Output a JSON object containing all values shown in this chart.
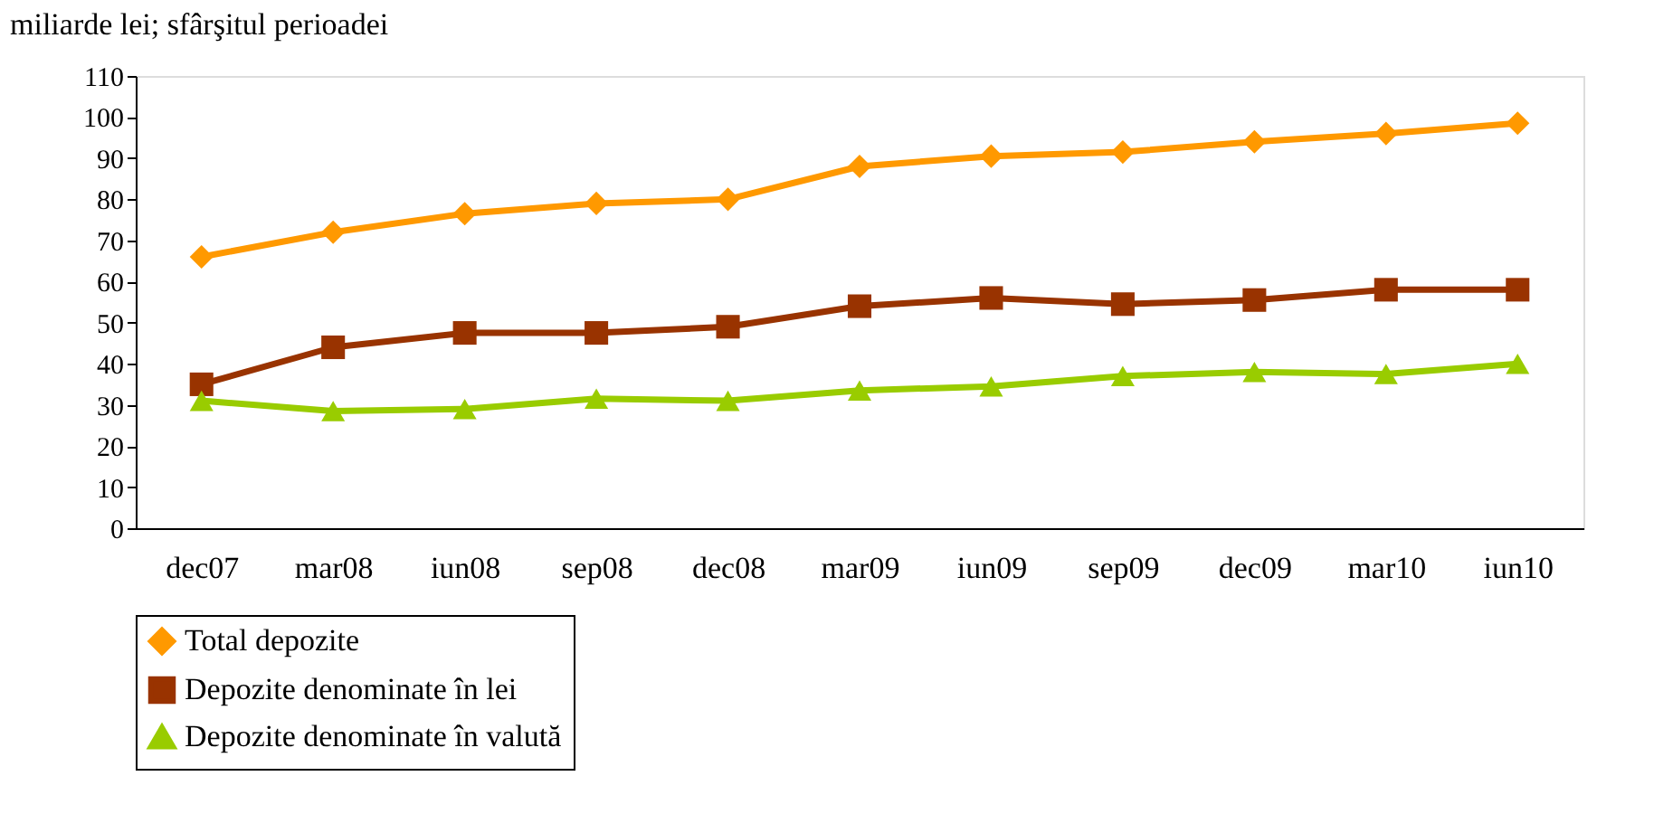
{
  "chart_data": {
    "type": "line",
    "title": "miliarde lei; sfârşitul perioadei",
    "categories": [
      "dec07",
      "mar08",
      "iun08",
      "sep08",
      "dec08",
      "mar09",
      "iun09",
      "sep09",
      "dec09",
      "mar10",
      "iun10"
    ],
    "series": [
      {
        "name": "Total depozite",
        "color": "#ff9900",
        "marker": "diamond",
        "values": [
          66,
          72,
          76.5,
          79,
          80,
          88,
          90.5,
          91.5,
          94,
          96,
          98.5
        ]
      },
      {
        "name": "Depozite denominate în lei",
        "color": "#993300",
        "marker": "square",
        "values": [
          35,
          44,
          47.5,
          47.5,
          49,
          54,
          56,
          54.5,
          55.5,
          58,
          58
        ]
      },
      {
        "name": "Depozite denominate în valută",
        "color": "#99cc00",
        "marker": "triangle",
        "values": [
          31,
          28.5,
          29,
          31.5,
          31,
          33.5,
          34.5,
          37,
          38,
          37.5,
          40
        ]
      }
    ],
    "ylim": [
      0,
      110
    ],
    "yticks": [
      0,
      10,
      20,
      30,
      40,
      50,
      60,
      70,
      80,
      90,
      100,
      110
    ],
    "grid": false,
    "legend": "bottom",
    "line_style": "solid"
  }
}
